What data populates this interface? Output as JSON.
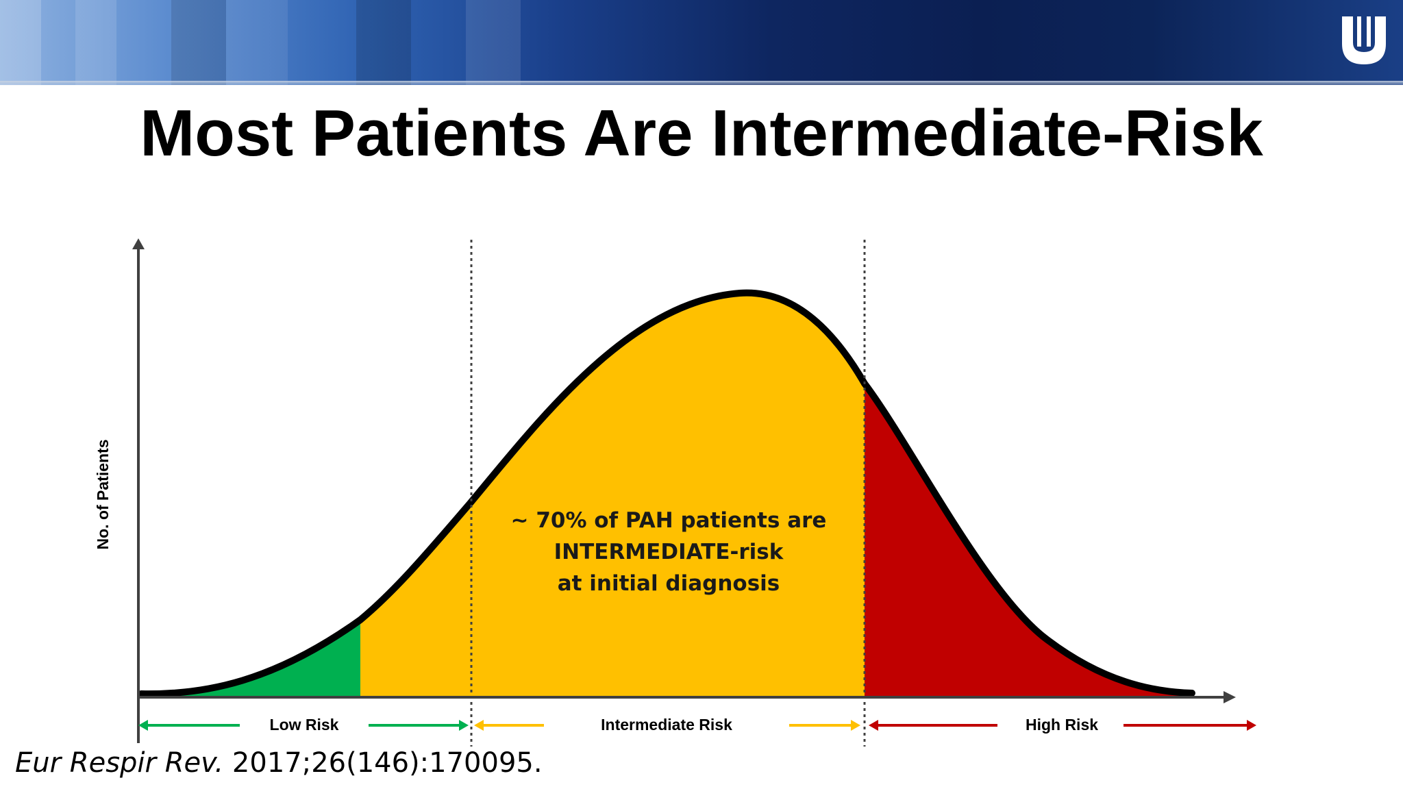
{
  "slide": {
    "title": "Most Patients Are Intermediate-Risk",
    "citation_journal": "Eur Respir Rev.",
    "citation_ref": " 2017;26(146):170095."
  },
  "diagram": {
    "y_axis_label": "No. of Patients",
    "annotation_lines": [
      "~ 70% of PAH patients are",
      "INTERMEDIATE-risk",
      "at initial diagnosis"
    ],
    "zones": [
      {
        "label": "Low Risk",
        "color": "#00b050"
      },
      {
        "label": "Intermediate Risk",
        "color": "#ffc000"
      },
      {
        "label": "High Risk",
        "color": "#c00000"
      }
    ]
  },
  "colors": {
    "low": "#00b050",
    "intermediate": "#ffc000",
    "high": "#c00000",
    "curve": "#000000",
    "axis": "#404040"
  },
  "icons": {
    "logo": "duke-university-shield-icon"
  }
}
